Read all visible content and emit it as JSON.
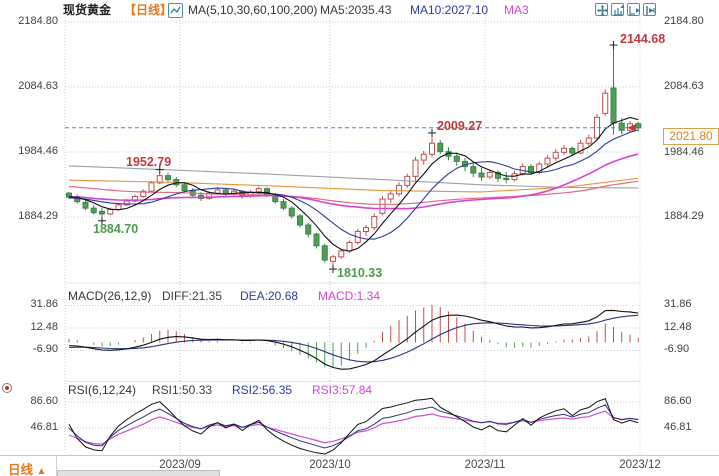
{
  "header": {
    "title": "现货黄金",
    "timeframe": "【日线】",
    "ma_params": "MA(5,10,30,60,100,200)",
    "ma5": "MA5:2035.43",
    "ma10": "MA10:2027.10",
    "ma30": "MA3"
  },
  "toolbar": {
    "icons": [
      "pan",
      "fit-vertical",
      "fit-horizontal",
      "step-forward"
    ]
  },
  "axes": {
    "main": [
      "2184.80",
      "2084.63",
      "1984.46",
      "1884.29"
    ],
    "macd": [
      "31.86",
      "12.48",
      "-6.90"
    ],
    "rsi": [
      "86.60",
      "46.81"
    ],
    "months": [
      "2023/09",
      "2023/10",
      "2023/11",
      "2023/12"
    ]
  },
  "macd_panel": {
    "title": "MACD(26,12,9)",
    "diff": "DIFF:21.35",
    "dea": "DEA:20.68",
    "macd": "MACD:1.34"
  },
  "rsi_panel": {
    "title": "RSI(6,12,24)",
    "rsi1": "RSI1:50.33",
    "rsi2": "RSI2:56.35",
    "rsi3": "RSI3:57.84"
  },
  "footer": {
    "timeframe": "日线",
    "arrow": "▲"
  },
  "chart_data": {
    "type": "candlestick",
    "title": "现货黄金 日线",
    "current_price": 2021.8,
    "current_price_label": "2021.80",
    "y_ticks_main": [
      2184.8,
      2084.63,
      1984.46,
      1884.29
    ],
    "macd_ticks": [
      31.86,
      12.48,
      -6.9
    ],
    "rsi_ticks": [
      86.6,
      46.81
    ],
    "month_x": [
      180,
      330,
      485,
      640
    ],
    "legend": [
      "MA5",
      "MA10",
      "MA30",
      "MA60",
      "MA100",
      "MA200"
    ],
    "colors": {
      "up": "#c14f4f",
      "down": "#4f9e58",
      "down_edge": "#3e8147",
      "ma5": "#111111",
      "ma10": "#2b3a9e",
      "ma30": "#d543d5",
      "ma60": "#e06a8a",
      "ma100": "#e8943a",
      "ma200": "#9aa0a6",
      "diff": "#111111",
      "dea": "#26337e",
      "rsi1": "#111111",
      "rsi2": "#26337e",
      "rsi3": "#cf4fcf",
      "dashed": "#4a86c8",
      "grid": "#c9ced6",
      "annotation_red": "#bf3b3b",
      "annotation_green": "#4d9a52"
    },
    "annotations": [
      {
        "label": "1884.70",
        "price": 1884.7,
        "index": 4,
        "kind": "low"
      },
      {
        "label": "1952.79",
        "price": 1952.79,
        "index": 11,
        "kind": "high"
      },
      {
        "label": "1810.33",
        "price": 1810.33,
        "index": 32,
        "kind": "low"
      },
      {
        "label": "2009.27",
        "price": 2009.27,
        "index": 44,
        "kind": "high"
      },
      {
        "label": "2144.68",
        "price": 2144.68,
        "index": 66,
        "kind": "high"
      }
    ],
    "seed_closes": [
      1968,
      1966,
      1964,
      1965,
      1962,
      1960,
      1961,
      1958,
      1956,
      1957,
      1954,
      1952,
      1953,
      1950,
      1948,
      1949,
      1946,
      1944,
      1945,
      1942,
      1940,
      1941,
      1938,
      1936,
      1937,
      1934,
      1932,
      1933,
      1930,
      1928,
      1929,
      1926,
      1924,
      1925,
      1922,
      1920,
      1921,
      1918,
      1916,
      1917,
      1914,
      1912,
      1913,
      1915,
      1916,
      1914,
      1912,
      1913,
      1910,
      1911,
      1913,
      1914,
      1912,
      1910,
      1911,
      1913,
      1915,
      1914,
      1916,
      1918
    ],
    "ohlc": [
      [
        1921,
        1923,
        1912,
        1915
      ],
      [
        1916,
        1919,
        1905,
        1908
      ],
      [
        1907,
        1911,
        1895,
        1898
      ],
      [
        1898,
        1903,
        1888,
        1891
      ],
      [
        1893,
        1898,
        1884.7,
        1889
      ],
      [
        1889,
        1899,
        1887,
        1896
      ],
      [
        1896,
        1906,
        1894,
        1903
      ],
      [
        1903,
        1912,
        1901,
        1909
      ],
      [
        1909,
        1919,
        1907,
        1916
      ],
      [
        1916,
        1927,
        1914,
        1924
      ],
      [
        1924,
        1940,
        1922,
        1937
      ],
      [
        1937,
        1952.79,
        1935,
        1948
      ],
      [
        1948,
        1953,
        1938,
        1942
      ],
      [
        1942,
        1946,
        1930,
        1934
      ],
      [
        1934,
        1938,
        1921,
        1925
      ],
      [
        1925,
        1929,
        1914,
        1918
      ],
      [
        1918,
        1923,
        1909,
        1913
      ],
      [
        1913,
        1924,
        1911,
        1921
      ],
      [
        1921,
        1930,
        1918,
        1926
      ],
      [
        1926,
        1929,
        1916,
        1920
      ],
      [
        1920,
        1927,
        1917,
        1924
      ],
      [
        1924,
        1926,
        1913,
        1917
      ],
      [
        1917,
        1926,
        1914,
        1923
      ],
      [
        1923,
        1931,
        1920,
        1928
      ],
      [
        1928,
        1930,
        1915,
        1918
      ],
      [
        1918,
        1921,
        1905,
        1908
      ],
      [
        1908,
        1912,
        1895,
        1898
      ],
      [
        1898,
        1901,
        1882,
        1886
      ],
      [
        1886,
        1889,
        1868,
        1872
      ],
      [
        1872,
        1875,
        1853,
        1858
      ],
      [
        1858,
        1860,
        1836,
        1840
      ],
      [
        1840,
        1843,
        1814,
        1818
      ],
      [
        1816,
        1826,
        1810.33,
        1823
      ],
      [
        1823,
        1835,
        1820,
        1832
      ],
      [
        1832,
        1848,
        1829,
        1845
      ],
      [
        1845,
        1866,
        1842,
        1862
      ],
      [
        1862,
        1872,
        1855,
        1868
      ],
      [
        1868,
        1890,
        1864,
        1885
      ],
      [
        1890,
        1917,
        1887,
        1912
      ],
      [
        1912,
        1925,
        1906,
        1920
      ],
      [
        1920,
        1938,
        1916,
        1933
      ],
      [
        1933,
        1951,
        1929,
        1947
      ],
      [
        1947,
        1977,
        1940,
        1972
      ],
      [
        1972,
        1986,
        1965,
        1981
      ],
      [
        1981,
        2009.27,
        1976,
        1998
      ],
      [
        1998,
        2003,
        1981,
        1985
      ],
      [
        1985,
        1992,
        1972,
        1978
      ],
      [
        1978,
        1984,
        1963,
        1970
      ],
      [
        1970,
        1975,
        1955,
        1962
      ],
      [
        1962,
        1968,
        1946,
        1952
      ],
      [
        1952,
        1960,
        1940,
        1946
      ],
      [
        1946,
        1957,
        1943,
        1953
      ],
      [
        1953,
        1956,
        1938,
        1944
      ],
      [
        1944,
        1954,
        1936,
        1942
      ],
      [
        1942,
        1956,
        1939,
        1951
      ],
      [
        1951,
        1967,
        1948,
        1962
      ],
      [
        1962,
        1966,
        1949,
        1953
      ],
      [
        1953,
        1970,
        1950,
        1966
      ],
      [
        1966,
        1980,
        1962,
        1975
      ],
      [
        1975,
        1989,
        1971,
        1984
      ],
      [
        1984,
        1995,
        1980,
        1990
      ],
      [
        1990,
        1993,
        1978,
        1983
      ],
      [
        1983,
        2003,
        1981,
        1998
      ],
      [
        1998,
        2011,
        1994,
        2006
      ],
      [
        2006,
        2043,
        2002,
        2038
      ],
      [
        2044,
        2081,
        2040,
        2075
      ],
      [
        2083,
        2144.68,
        2011,
        2029
      ],
      [
        2029,
        2037,
        2012,
        2018
      ],
      [
        2018,
        2032,
        2014,
        2028
      ],
      [
        2028,
        2031,
        2016,
        2021.8
      ]
    ],
    "ma100_anchors": [
      [
        0,
        1941
      ],
      [
        12,
        1938
      ],
      [
        25,
        1932
      ],
      [
        38,
        1925
      ],
      [
        50,
        1923
      ],
      [
        60,
        1930
      ],
      [
        69,
        1944
      ]
    ],
    "ma200_anchors": [
      [
        0,
        1963
      ],
      [
        12,
        1957
      ],
      [
        25,
        1950
      ],
      [
        38,
        1942
      ],
      [
        50,
        1934
      ],
      [
        60,
        1930
      ],
      [
        69,
        1929
      ]
    ]
  }
}
